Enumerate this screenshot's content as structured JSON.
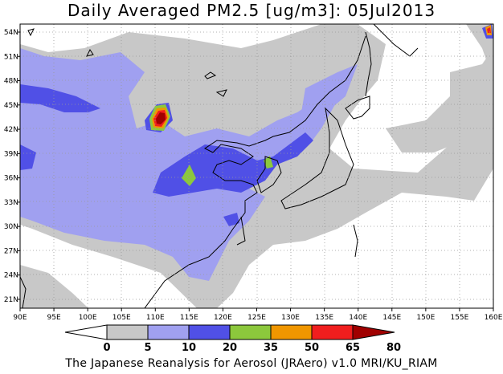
{
  "title": "Daily Averaged PM2.5 [ug/m3]: 05Jul2013",
  "credit": "The Japanese Reanalysis for Aerosol (JRAero) v1.0 MRI/KU_RIAM",
  "map": {
    "lon_range": [
      90,
      160
    ],
    "lat_range": [
      20,
      55
    ],
    "lon_ticks": [
      "90E",
      "95E",
      "100E",
      "105E",
      "110E",
      "115E",
      "120E",
      "125E",
      "130E",
      "135E",
      "140E",
      "145E",
      "150E",
      "155E",
      "160E"
    ],
    "lat_ticks": [
      "54N",
      "51N",
      "48N",
      "45N",
      "42N",
      "39N",
      "36N",
      "33N",
      "30N",
      "27N",
      "24N",
      "21N"
    ],
    "grid": "dotted",
    "land_fill": "white",
    "coastline_color": "#000000"
  },
  "colorbar": {
    "levels": [
      "0",
      "5",
      "10",
      "20",
      "35",
      "50",
      "65",
      "80"
    ],
    "colors": [
      "#ffffff",
      "#c8c8c8",
      "#a0a0f0",
      "#5050e6",
      "#8cc83c",
      "#f09600",
      "#f01e1e",
      "#a00000"
    ]
  }
}
